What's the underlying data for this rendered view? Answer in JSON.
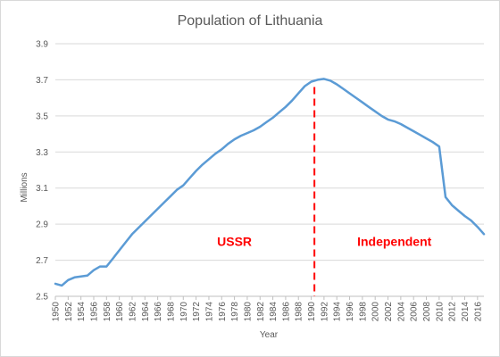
{
  "chart_data": {
    "type": "line",
    "title": "Population of Lithuania",
    "xlabel": "Year",
    "ylabel": "Millions",
    "xlim": [
      1950,
      2017
    ],
    "ylim": [
      2.5,
      3.9
    ],
    "y_ticks": [
      "2.5",
      "2.7",
      "2.9",
      "3.1",
      "3.3",
      "3.5",
      "3.7",
      "3.9"
    ],
    "x_ticks": [
      "1950",
      "1952",
      "1954",
      "1956",
      "1958",
      "1960",
      "1962",
      "1964",
      "1966",
      "1968",
      "1970",
      "1972",
      "1974",
      "1976",
      "1978",
      "1980",
      "1982",
      "1984",
      "1986",
      "1988",
      "1990",
      "1992",
      "1994",
      "1996",
      "1998",
      "2000",
      "2002",
      "2004",
      "2006",
      "2008",
      "2010",
      "2012",
      "2014",
      "2016"
    ],
    "grid": true,
    "legend": "none",
    "line_color": "#5b9bd5",
    "series": [
      {
        "x": [
          1950,
          1951,
          1952,
          1953,
          1954,
          1955,
          1956,
          1957,
          1958,
          1959,
          1960,
          1961,
          1962,
          1963,
          1964,
          1965,
          1966,
          1967,
          1968,
          1969,
          1970,
          1971,
          1972,
          1973,
          1974,
          1975,
          1976,
          1977,
          1978,
          1979,
          1980,
          1981,
          1982,
          1983,
          1984,
          1985,
          1986,
          1987,
          1988,
          1989,
          1990,
          1991,
          1992,
          1993,
          1994,
          1995,
          1996,
          1997,
          1998,
          1999,
          2000,
          2001,
          2002,
          2003,
          2004,
          2005,
          2006,
          2007,
          2008,
          2009,
          2010,
          2011,
          2012,
          2013,
          2014,
          2015,
          2016,
          2017
        ],
        "y": [
          2.57,
          2.56,
          2.59,
          2.605,
          2.61,
          2.615,
          2.645,
          2.665,
          2.665,
          2.71,
          2.755,
          2.8,
          2.845,
          2.88,
          2.915,
          2.95,
          2.985,
          3.02,
          3.055,
          3.09,
          3.115,
          3.155,
          3.195,
          3.23,
          3.26,
          3.29,
          3.315,
          3.345,
          3.37,
          3.39,
          3.405,
          3.42,
          3.44,
          3.465,
          3.49,
          3.52,
          3.55,
          3.585,
          3.625,
          3.665,
          3.69,
          3.7,
          3.705,
          3.695,
          3.675,
          3.65,
          3.625,
          3.6,
          3.575,
          3.55,
          3.525,
          3.5,
          3.48,
          3.47,
          3.455,
          3.435,
          3.415,
          3.395,
          3.375,
          3.355,
          3.33,
          3.05,
          3.005,
          2.975,
          2.945,
          2.92,
          2.885,
          2.845
        ]
      }
    ],
    "annotations": [
      {
        "text": "USSR",
        "x": 1978,
        "y": 2.78,
        "color": "#ff0000"
      },
      {
        "text": "Independent",
        "x": 2003,
        "y": 2.78,
        "color": "#ff0000"
      }
    ],
    "vline": {
      "x": 1990.5,
      "color": "#ff0000",
      "style": "dashed"
    }
  }
}
